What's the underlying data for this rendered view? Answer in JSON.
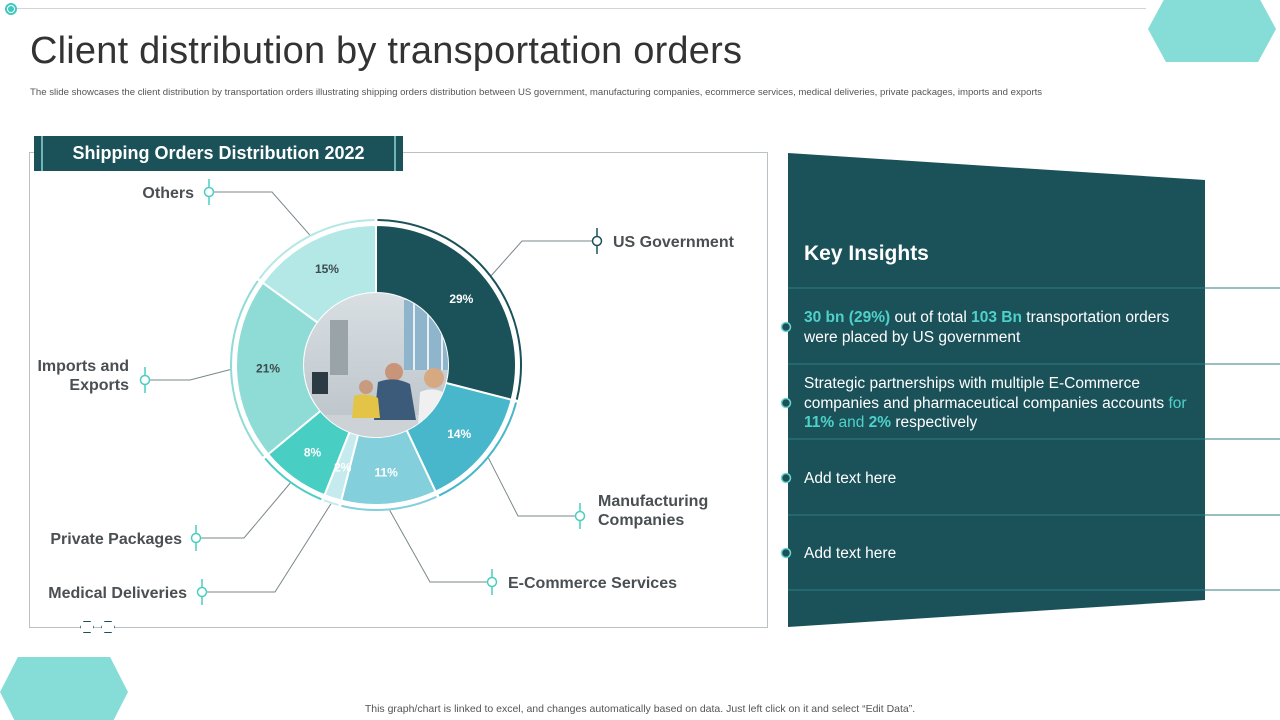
{
  "slide": {
    "title": "Client distribution by transportation orders",
    "subtitle": "The slide showcases the client distribution by transportation orders illustrating shipping orders distribution between US government, manufacturing companies, ecommerce services, medical deliveries, private packages, imports and exports",
    "footnote": "This graph/chart is linked to excel, and changes automatically based on data. Just left click on it and select “Edit Data”."
  },
  "chart_header": "Shipping Orders Distribution 2022",
  "chart_data": {
    "type": "pie",
    "title": "Shipping Orders Distribution 2022",
    "categories": [
      "US Government",
      "Manufacturing Companies",
      "E-Commerce Services",
      "Medical Deliveries",
      "Private Packages",
      "Imports and Exports",
      "Others"
    ],
    "values": [
      29,
      14,
      11,
      2,
      8,
      21,
      15
    ],
    "labels": [
      "29%",
      "14%",
      "11%",
      "2%",
      "8%",
      "21%",
      "15%"
    ],
    "colors": [
      "#1b525a",
      "#48b7cb",
      "#83cfdc",
      "#c6ebee",
      "#49cec3",
      "#8fdcd6",
      "#b3e8e6"
    ],
    "callouts": [
      "US Government",
      "Manufacturing\nCompanies",
      "E-Commerce Services",
      "Medical Deliveries",
      "Private Packages",
      "Imports and\nExports",
      "Others"
    ]
  },
  "insights": {
    "title": "Key Insights",
    "item1": {
      "hl1": "30 bn (29%)",
      "t1": " out of total ",
      "hl2": "103 Bn",
      "t2": " transportation orders were placed by US government"
    },
    "item2": {
      "t1": "Strategic partnerships with multiple E-Commerce companies and pharmaceutical companies accounts ",
      "hl1": "for",
      "t2": " ",
      "hl2": "11%",
      "hl3": " and ",
      "hl4": "2%",
      "t3": " respectively"
    },
    "item3": "Add text here",
    "item4": "Add text here"
  },
  "colors": {
    "teal_dark": "#1b525a",
    "teal_accent": "#4fd1c9",
    "hex_shape": "#86ddd8"
  }
}
